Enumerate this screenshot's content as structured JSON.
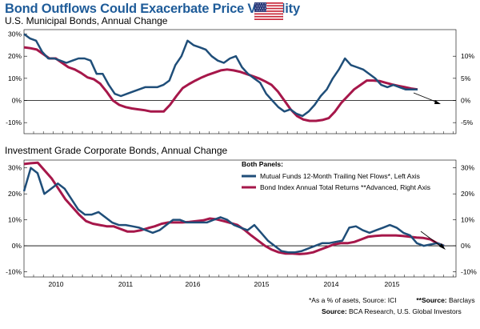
{
  "header": {
    "title": "Bond Outflows Could Exacerbate Price Volatility"
  },
  "flag_icon": "us-flag-icon",
  "colors": {
    "flows": "#1f4e79",
    "returns": "#a6174a",
    "title": "#1f5c99"
  },
  "legend": {
    "heading": "Both Panels:",
    "items": [
      "Mutual Funds 12-Month Trailing Net Flows*, Left Axis",
      "Bond Index Annual Total Returns **Advanced, Right Axis"
    ]
  },
  "footnotes": {
    "note1": "*As a % of asets, Source: ICI",
    "note2_bold": "**Source:",
    "note2": " Barclays",
    "source_bold": "Source:",
    "source": " BCA Research, U.S. Global Investors"
  },
  "chart_data": [
    {
      "type": "line",
      "title": "U.S. Municipal Bonds, Annual Change",
      "left_axis": {
        "ticks": [
          "30%",
          "20%",
          "10%",
          "0%",
          "-10%"
        ],
        "range": [
          -15,
          32
        ]
      },
      "right_axis": {
        "ticks": [
          "10%",
          "5%",
          "0%",
          "-5%"
        ],
        "range": [
          -7.5,
          16
        ]
      },
      "series": [
        {
          "name": "Mutual Funds 12-Month Trailing Net Flows*, Left Axis",
          "axis": "left",
          "values": [
            30,
            28,
            27,
            22,
            19,
            19,
            18,
            17,
            18,
            19,
            19,
            18,
            12,
            12,
            7,
            3,
            2,
            3,
            4,
            5,
            6,
            6,
            6,
            7,
            9,
            16,
            20,
            27,
            25,
            24,
            23,
            20,
            18,
            17,
            19,
            20,
            15,
            12,
            10,
            8,
            3,
            0,
            -3,
            -5,
            -4,
            -6,
            -7,
            -5,
            -2,
            2,
            5,
            10,
            14,
            19,
            16,
            15,
            14,
            12,
            10,
            7,
            6,
            7,
            6,
            5,
            5,
            5
          ]
        },
        {
          "name": "Bond Index Annual Total Returns **Advanced, Right Axis",
          "axis": "right",
          "values": [
            12,
            11.8,
            11.5,
            10.5,
            9.5,
            9.5,
            8.5,
            7.5,
            7,
            6.2,
            5.2,
            4.8,
            3.8,
            2,
            0,
            -1,
            -1.5,
            -1.8,
            -2,
            -2.2,
            -2.5,
            -2.5,
            -2.5,
            -1,
            1,
            2.8,
            3.7,
            4.5,
            5.2,
            5.8,
            6.3,
            6.8,
            7,
            6.8,
            6.5,
            6,
            5.5,
            5,
            4.3,
            3.5,
            2,
            0,
            -2,
            -3.5,
            -4.3,
            -4.6,
            -4.6,
            -4.4,
            -4,
            -2.5,
            -0.5,
            1,
            2.5,
            3.5,
            4.5,
            4.5,
            4.4,
            4,
            3.6,
            3.3,
            3,
            2.7,
            2.5
          ]
        }
      ],
      "trend_arrow": "down"
    },
    {
      "type": "line",
      "title": "Investment Grade Corporate Bonds, Annual Change",
      "left_axis": {
        "ticks": [
          "30%",
          "20%",
          "10%",
          "0%",
          "-10%"
        ],
        "range": [
          -12,
          33
        ]
      },
      "right_axis": {
        "ticks": [
          "30%",
          "20%",
          "10%",
          "0%",
          "-10%"
        ],
        "range": [
          -12,
          33
        ]
      },
      "x_tick_labels": [
        "2010",
        "2011",
        "2016",
        "2015",
        "2014",
        "2015"
      ],
      "series": [
        {
          "name": "Mutual Funds 12-Month Trailing Net Flows*, Left Axis",
          "axis": "left",
          "values": [
            21,
            30,
            28,
            20,
            22,
            24,
            22,
            18,
            14,
            12,
            12,
            13,
            11,
            9,
            8,
            8,
            7.5,
            7,
            6,
            5,
            6,
            8,
            10,
            10,
            9,
            9,
            9,
            9,
            10,
            11,
            10,
            8,
            7,
            6,
            8,
            5,
            2,
            0,
            -2,
            -2.5,
            -2.5,
            -2,
            -1,
            0,
            1,
            1,
            1.5,
            2,
            7,
            7.5,
            6,
            5,
            6,
            7,
            8,
            7,
            5,
            4,
            1,
            0,
            0.5,
            1,
            0
          ]
        },
        {
          "name": "Bond Index Annual Total Returns **Advanced, Right Axis",
          "axis": "right",
          "values": [
            31.5,
            31.8,
            32,
            29,
            26,
            22,
            18,
            15,
            12,
            9.5,
            8.5,
            8,
            7.5,
            7.5,
            6.5,
            5.5,
            5.5,
            6,
            6.8,
            7.5,
            8.5,
            9,
            9,
            9,
            9.2,
            9.5,
            9.8,
            10.5,
            10.2,
            9.5,
            8.8,
            8,
            6.2,
            4,
            2,
            0,
            -1.5,
            -2.5,
            -3,
            -3,
            -3.2,
            -3,
            -2.5,
            -1.5,
            -0.5,
            0.5,
            1,
            1,
            1.5,
            2.5,
            3.5,
            3.8,
            4,
            4,
            4,
            3.8,
            3.5,
            3.2,
            3,
            2.5,
            1,
            0
          ]
        }
      ],
      "trend_arrow": "down"
    }
  ]
}
